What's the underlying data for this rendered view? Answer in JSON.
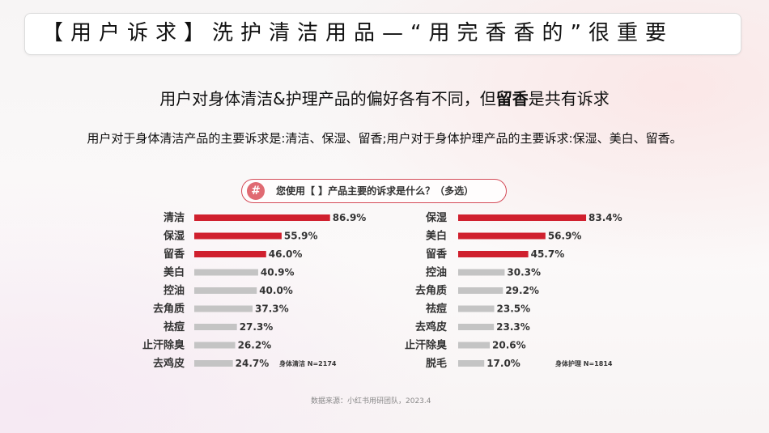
{
  "header": {
    "title": "【用户诉求】洗护清洁用品—“用完香香的”很重要"
  },
  "subtitle": {
    "part1": "用户对身体清洁&护理产品的偏好各有不同，但",
    "bold": "留香",
    "part2": "是共有诉求"
  },
  "description": "用户对于身体清洁产品的主要诉求是:清洁、保湿、留香;用户对于身体护理产品的主要诉求:保湿、美白、留香。",
  "question": {
    "badge": "#",
    "text": "您使用【 】产品主要的诉求是什么？（多选）"
  },
  "source": "数据来源：小红书用研团队，2023.4",
  "colors": {
    "highlight": "#d0202e",
    "normal": "#c4c4c4",
    "accent_border": "#d44b58"
  },
  "chart_data": [
    {
      "type": "bar",
      "orientation": "horizontal",
      "sample_label": "身体清洁 N=2174",
      "categories": [
        "清洁",
        "保湿",
        "留香",
        "美白",
        "控油",
        "去角质",
        "祛痘",
        "止汗除臭",
        "去鸡皮"
      ],
      "values": [
        86.9,
        55.9,
        46.0,
        40.9,
        40.0,
        37.3,
        27.3,
        26.2,
        24.7
      ],
      "value_labels": [
        "86.9%",
        "55.9%",
        "46.0%",
        "40.9%",
        "40.0%",
        "37.3%",
        "27.3%",
        "26.2%",
        "24.7%"
      ],
      "highlighted": [
        true,
        true,
        true,
        false,
        false,
        false,
        false,
        false,
        false
      ],
      "unit": "%"
    },
    {
      "type": "bar",
      "orientation": "horizontal",
      "sample_label": "身体护理 N=1814",
      "categories": [
        "保湿",
        "美白",
        "留香",
        "控油",
        "去角质",
        "祛痘",
        "去鸡皮",
        "止汗除臭",
        "脱毛"
      ],
      "values": [
        83.4,
        56.9,
        45.7,
        30.3,
        29.2,
        23.5,
        23.3,
        20.6,
        17.0
      ],
      "value_labels": [
        "83.4%",
        "56.9%",
        "45.7%",
        "30.3%",
        "29.2%",
        "23.5%",
        "23.3%",
        "20.6%",
        "17.0%"
      ],
      "highlighted": [
        true,
        true,
        true,
        false,
        false,
        false,
        false,
        false,
        false
      ],
      "unit": "%"
    }
  ]
}
